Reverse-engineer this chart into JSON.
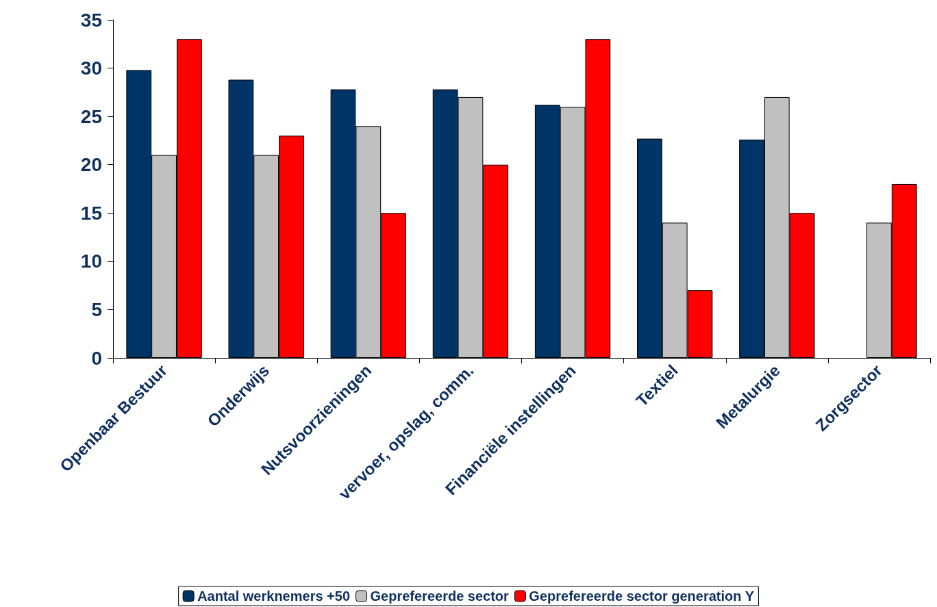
{
  "chart_data": {
    "type": "bar",
    "categories": [
      "Openbaar Bestuur",
      "Onderwijs",
      "Nutsvoorzieningen",
      "vervoer, opslag, comm.",
      "Financiële instellingen",
      "Textiel",
      "Metalurgie",
      "Zorgsector"
    ],
    "series": [
      {
        "name": "Aantal werknemers +50",
        "color": "#003366",
        "values": [
          29.8,
          28.8,
          27.8,
          27.8,
          26.2,
          22.7,
          22.6,
          null
        ]
      },
      {
        "name": "Geprefereerde sector",
        "color": "#c0c0c0",
        "values": [
          21,
          21,
          24,
          27,
          26,
          14,
          27,
          14
        ]
      },
      {
        "name": "Geprefereerde sector generation Y",
        "color": "#ff0000",
        "values": [
          33,
          23,
          15,
          20,
          33,
          7,
          15,
          18
        ]
      }
    ],
    "ylim": [
      0,
      35
    ],
    "yticks": [
      0,
      5,
      10,
      15,
      20,
      25,
      30,
      35
    ],
    "grid": false,
    "legend": "bottom"
  }
}
